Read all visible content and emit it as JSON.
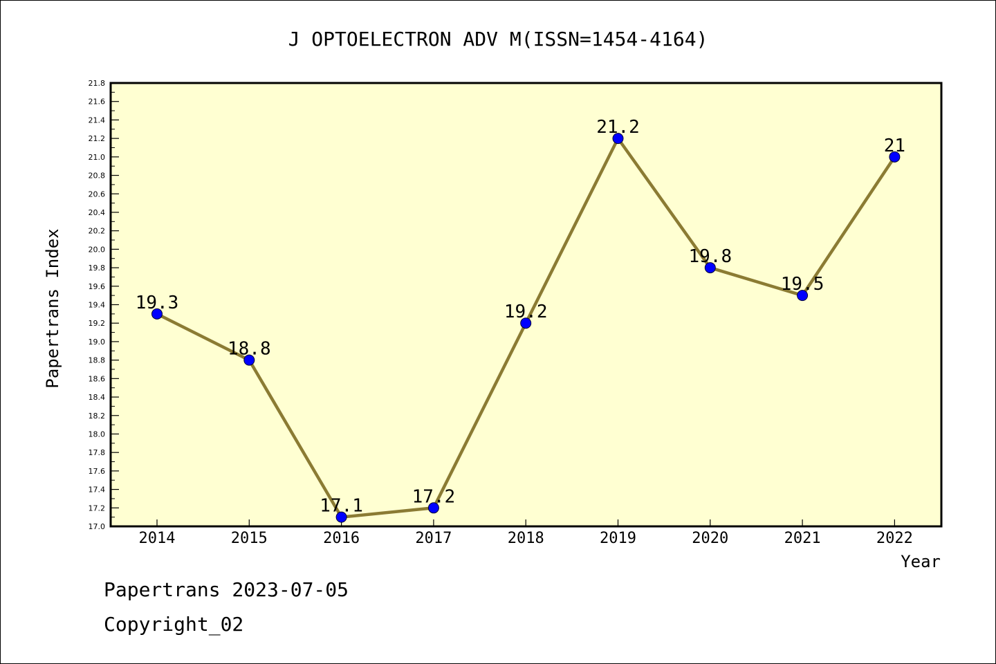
{
  "footer": {
    "line1": "Papertrans 2023-07-05",
    "line2": "Copyright_02"
  },
  "chart_data": {
    "type": "line",
    "title": "J OPTOELECTRON ADV M(ISSN=1454-4164)",
    "xlabel": "Year",
    "ylabel": "Papertrans Index",
    "categories": [
      "2014",
      "2015",
      "2016",
      "2017",
      "2018",
      "2019",
      "2020",
      "2021",
      "2022"
    ],
    "values": [
      19.3,
      18.8,
      17.1,
      17.2,
      19.2,
      21.2,
      19.8,
      19.5,
      21
    ],
    "data_labels": [
      "19.3",
      "18.8",
      "17.1",
      "17.2",
      "19.2",
      "21.2",
      "19.8",
      "19.5",
      "21"
    ],
    "ylim": [
      17.0,
      21.8
    ],
    "ytick_step": 0.2,
    "grid": false,
    "colors": {
      "plot_background": "#ffffd2",
      "line": "#8b7b33",
      "marker": "#0000ff"
    }
  }
}
